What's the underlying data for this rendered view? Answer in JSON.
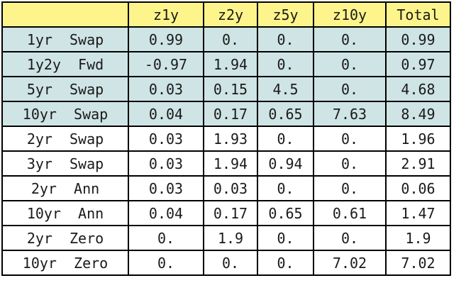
{
  "table": {
    "columns": [
      "",
      "z1y",
      "z2y",
      "z5y",
      "z10y",
      "Total"
    ],
    "rows": [
      {
        "label": "1yr  Swap",
        "cells": [
          "0.99",
          "0.",
          "0.",
          "0.",
          "0.99"
        ],
        "shaded": true
      },
      {
        "label": "1y2y  Fwd",
        "cells": [
          "-0.97",
          "1.94",
          "0.",
          "0.",
          "0.97"
        ],
        "shaded": true
      },
      {
        "label": "5yr  Swap",
        "cells": [
          "0.03",
          "0.15",
          "4.5",
          "0.",
          "4.68"
        ],
        "shaded": true
      },
      {
        "label": "10yr  Swap",
        "cells": [
          "0.04",
          "0.17",
          "0.65",
          "7.63",
          "8.49"
        ],
        "shaded": true
      },
      {
        "label": "2yr  Swap",
        "cells": [
          "0.03",
          "1.93",
          "0.",
          "0.",
          "1.96"
        ],
        "shaded": false
      },
      {
        "label": "3yr  Swap",
        "cells": [
          "0.03",
          "1.94",
          "0.94",
          "0.",
          "2.91"
        ],
        "shaded": false
      },
      {
        "label": "2yr  Ann",
        "cells": [
          "0.03",
          "0.03",
          "0.",
          "0.",
          "0.06"
        ],
        "shaded": false
      },
      {
        "label": "10yr  Ann",
        "cells": [
          "0.04",
          "0.17",
          "0.65",
          "0.61",
          "1.47"
        ],
        "shaded": false
      },
      {
        "label": "2yr  Zero",
        "cells": [
          "0.",
          "1.9",
          "0.",
          "0.",
          "1.9"
        ],
        "shaded": false
      },
      {
        "label": "10yr  Zero",
        "cells": [
          "0.",
          "0.",
          "0.",
          "7.02",
          "7.02"
        ],
        "shaded": false
      }
    ]
  },
  "colors": {
    "header_bg": "#fdf58b",
    "shaded_row_bg": "#cfe4e4",
    "plain_row_bg": "#ffffff",
    "border": "#000000"
  }
}
